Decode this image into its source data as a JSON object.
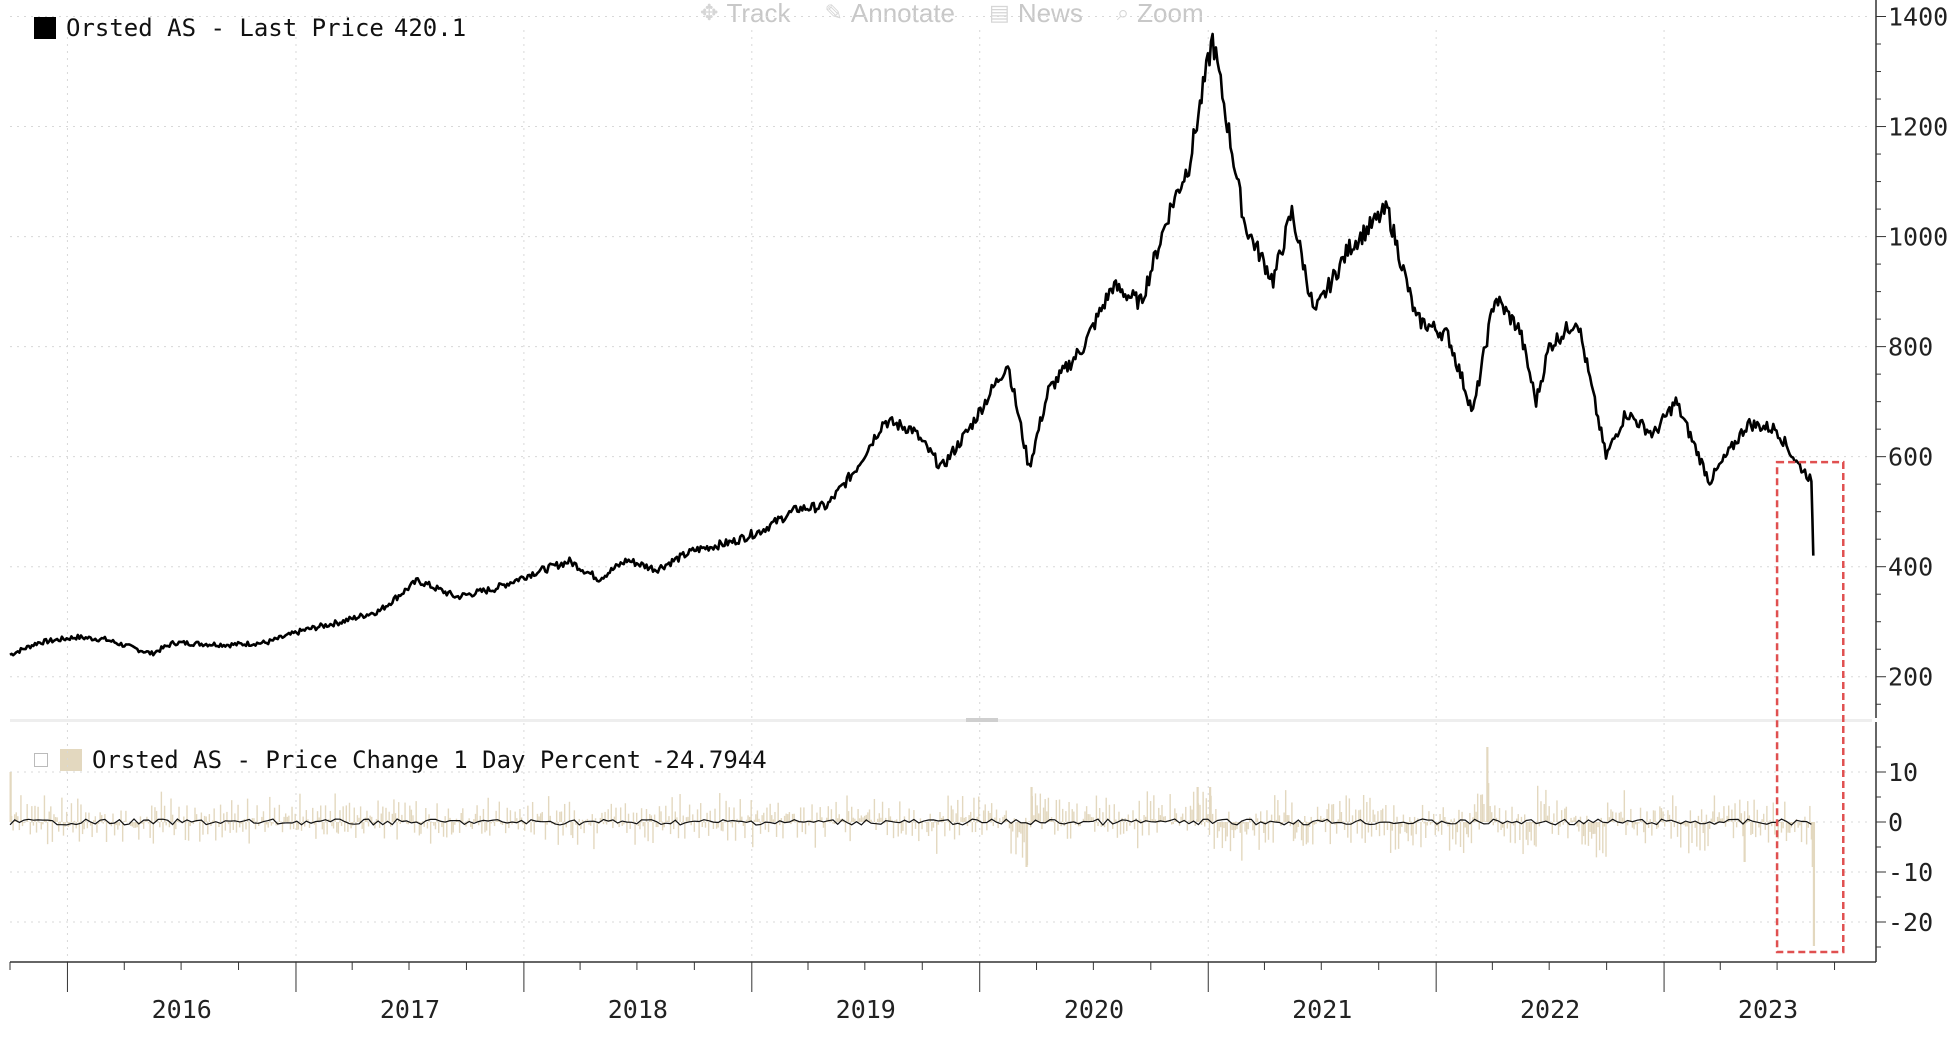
{
  "toolbar": {
    "track": {
      "label": "Track",
      "icon": "crosshair-icon"
    },
    "annotate": {
      "label": "Annotate",
      "icon": "pencil-icon"
    },
    "news": {
      "label": "News",
      "icon": "news-icon"
    },
    "zoom": {
      "label": "Zoom",
      "icon": "magnifier-icon"
    }
  },
  "colors": {
    "price_line": "#000000",
    "change_bars": "#e3d8bf",
    "highlight_box": "#e05050",
    "grid": "#d8d8d8",
    "axis": "#333333"
  },
  "chart_data": [
    {
      "type": "line",
      "legend": {
        "label": "Orsted AS - Last Price",
        "value": "420.1"
      },
      "x_ticks": [
        "2016",
        "2017",
        "2018",
        "2019",
        "2020",
        "2021",
        "2022",
        "2023"
      ],
      "xlim": [
        "2015-10-01",
        "2023-11-30"
      ],
      "y_ticks": [
        200,
        400,
        600,
        800,
        1000,
        1200,
        1400
      ],
      "ylim": [
        125,
        1430
      ],
      "y_axis_side": "right",
      "grid": true,
      "points": [
        [
          "2015-10-01",
          240
        ],
        [
          "2015-11-15",
          262
        ],
        [
          "2016-01-15",
          272
        ],
        [
          "2016-03-01",
          268
        ],
        [
          "2016-05-15",
          242
        ],
        [
          "2016-06-20",
          262
        ],
        [
          "2016-09-15",
          258
        ],
        [
          "2016-11-15",
          262
        ],
        [
          "2017-01-15",
          285
        ],
        [
          "2017-03-15",
          300
        ],
        [
          "2017-05-15",
          320
        ],
        [
          "2017-07-15",
          375
        ],
        [
          "2017-09-15",
          345
        ],
        [
          "2017-11-15",
          360
        ],
        [
          "2018-01-15",
          388
        ],
        [
          "2018-03-15",
          410
        ],
        [
          "2018-05-01",
          378
        ],
        [
          "2018-06-15",
          412
        ],
        [
          "2018-08-01",
          395
        ],
        [
          "2018-10-01",
          430
        ],
        [
          "2018-12-01",
          445
        ],
        [
          "2019-01-15",
          465
        ],
        [
          "2019-03-15",
          505
        ],
        [
          "2019-05-01",
          510
        ],
        [
          "2019-06-15",
          575
        ],
        [
          "2019-08-01",
          665
        ],
        [
          "2019-09-15",
          650
        ],
        [
          "2019-11-01",
          580
        ],
        [
          "2019-12-15",
          650
        ],
        [
          "2020-02-15",
          770
        ],
        [
          "2020-03-20",
          580
        ],
        [
          "2020-04-20",
          720
        ],
        [
          "2020-06-15",
          800
        ],
        [
          "2020-08-01",
          910
        ],
        [
          "2020-09-15",
          880
        ],
        [
          "2020-11-01",
          1050
        ],
        [
          "2020-12-01",
          1130
        ],
        [
          "2021-01-08",
          1360
        ],
        [
          "2021-03-01",
          1020
        ],
        [
          "2021-04-15",
          920
        ],
        [
          "2021-05-15",
          1045
        ],
        [
          "2021-06-20",
          860
        ],
        [
          "2021-08-15",
          980
        ],
        [
          "2021-10-15",
          1050
        ],
        [
          "2021-11-30",
          850
        ],
        [
          "2022-01-20",
          820
        ],
        [
          "2022-03-01",
          680
        ],
        [
          "2022-04-05",
          890
        ],
        [
          "2022-05-15",
          830
        ],
        [
          "2022-06-10",
          700
        ],
        [
          "2022-07-01",
          800
        ],
        [
          "2022-08-15",
          850
        ],
        [
          "2022-09-30",
          600
        ],
        [
          "2022-11-01",
          680
        ],
        [
          "2022-12-15",
          640
        ],
        [
          "2023-01-20",
          700
        ],
        [
          "2023-03-15",
          555
        ],
        [
          "2023-05-15",
          660
        ],
        [
          "2023-06-30",
          650
        ],
        [
          "2023-08-01",
          590
        ],
        [
          "2023-08-20",
          565
        ],
        [
          "2023-08-25",
          555
        ],
        [
          "2023-08-28",
          420.1
        ]
      ]
    },
    {
      "type": "bar",
      "legend": {
        "label": "Orsted AS - Price Change 1 Day Percent",
        "value": "-24.7944"
      },
      "x_ticks": [
        "2016",
        "2017",
        "2018",
        "2019",
        "2020",
        "2021",
        "2022",
        "2023"
      ],
      "y_ticks": [
        -20,
        -10,
        0,
        10
      ],
      "ylim": [
        -28,
        20
      ],
      "y_axis_side": "right",
      "grid": true,
      "notable_values": [
        [
          "2015-10-02",
          10
        ],
        [
          "2020-03-16",
          -9
        ],
        [
          "2020-03-24",
          7
        ],
        [
          "2020-12-15",
          7
        ],
        [
          "2021-01-04",
          7
        ],
        [
          "2022-03-24",
          15
        ],
        [
          "2023-05-10",
          -8
        ],
        [
          "2023-08-29",
          -24.7944
        ]
      ]
    }
  ],
  "highlight": {
    "label": "latest-drop",
    "from": "2023-07-01",
    "to": "2023-10-15"
  }
}
